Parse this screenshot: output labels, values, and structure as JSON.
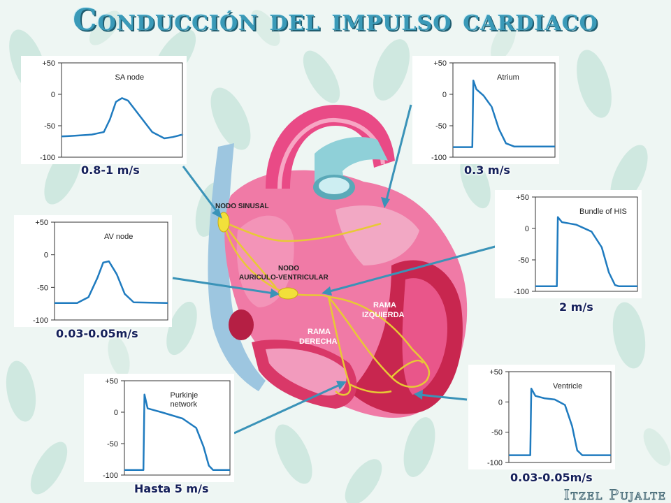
{
  "title": "Conducción del impulso cardiaco",
  "author": "Itzel Pujalte",
  "heart_labels": {
    "nodo_sinusal": "NODO SINUSAL",
    "nodo_av_1": "NODO",
    "nodo_av_2": "AURICULO-VENTRICULAR",
    "rama_izq_1": "RAMA",
    "rama_izq_2": "IZQUIERDA",
    "rama_der_1": "RAMA",
    "rama_der_2": "DERECHA"
  },
  "y_ticks": [
    "+50",
    "0",
    "-50",
    "-100"
  ],
  "panels": [
    {
      "id": "sa",
      "name": "SA  node",
      "name2": "",
      "speed": "0.8-1 m/s",
      "waveform": [
        [
          0,
          -67
        ],
        [
          0.1,
          -66
        ],
        [
          0.25,
          -64
        ],
        [
          0.35,
          -60
        ],
        [
          0.4,
          -40
        ],
        [
          0.45,
          -12
        ],
        [
          0.5,
          -6
        ],
        [
          0.55,
          -10
        ],
        [
          0.65,
          -35
        ],
        [
          0.75,
          -60
        ],
        [
          0.85,
          -70
        ],
        [
          0.92,
          -68
        ],
        [
          1,
          -64
        ]
      ]
    },
    {
      "id": "atrium",
      "name": "Atrium",
      "name2": "",
      "speed": "0.3 m/s",
      "waveform": [
        [
          0,
          -84
        ],
        [
          0.18,
          -84
        ],
        [
          0.19,
          -84
        ],
        [
          0.2,
          22
        ],
        [
          0.23,
          8
        ],
        [
          0.3,
          -2
        ],
        [
          0.38,
          -20
        ],
        [
          0.45,
          -55
        ],
        [
          0.52,
          -78
        ],
        [
          0.6,
          -83
        ],
        [
          1,
          -83
        ]
      ]
    },
    {
      "id": "av",
      "name": "AV node",
      "name2": "",
      "speed": "0.03-0.05m/s",
      "waveform": [
        [
          0,
          -74
        ],
        [
          0.2,
          -74
        ],
        [
          0.3,
          -65
        ],
        [
          0.38,
          -35
        ],
        [
          0.43,
          -12
        ],
        [
          0.48,
          -10
        ],
        [
          0.55,
          -30
        ],
        [
          0.62,
          -60
        ],
        [
          0.7,
          -73
        ],
        [
          1,
          -74
        ]
      ]
    },
    {
      "id": "his",
      "name": "Bundle of HIS",
      "name2": "",
      "speed": "2 m/s",
      "waveform": [
        [
          0,
          -92
        ],
        [
          0.2,
          -92
        ],
        [
          0.21,
          -92
        ],
        [
          0.22,
          18
        ],
        [
          0.26,
          10
        ],
        [
          0.4,
          6
        ],
        [
          0.55,
          -5
        ],
        [
          0.65,
          -30
        ],
        [
          0.72,
          -70
        ],
        [
          0.78,
          -90
        ],
        [
          0.82,
          -92
        ],
        [
          1,
          -92
        ]
      ]
    },
    {
      "id": "purkinje",
      "name": "Purkinje",
      "name2": "network",
      "speed": "Hasta 5 m/s",
      "waveform": [
        [
          0,
          -92
        ],
        [
          0.17,
          -92
        ],
        [
          0.18,
          -92
        ],
        [
          0.19,
          28
        ],
        [
          0.22,
          6
        ],
        [
          0.35,
          0
        ],
        [
          0.55,
          -10
        ],
        [
          0.68,
          -25
        ],
        [
          0.75,
          -55
        ],
        [
          0.8,
          -85
        ],
        [
          0.84,
          -92
        ],
        [
          1,
          -92
        ]
      ]
    },
    {
      "id": "ventricle",
      "name": "Ventricle",
      "name2": "",
      "speed": "0.03-0.05m/s",
      "waveform": [
        [
          0,
          -88
        ],
        [
          0.2,
          -88
        ],
        [
          0.21,
          -88
        ],
        [
          0.22,
          22
        ],
        [
          0.26,
          10
        ],
        [
          0.35,
          6
        ],
        [
          0.45,
          4
        ],
        [
          0.55,
          -5
        ],
        [
          0.62,
          -40
        ],
        [
          0.67,
          -80
        ],
        [
          0.72,
          -88
        ],
        [
          1,
          -88
        ]
      ]
    }
  ],
  "colors": {
    "title": "#3a9ab8",
    "trace": "#1f7bbf",
    "arrow": "#3a93b8",
    "speed_text": "#14205a",
    "heart_pink": "#e94a86",
    "heart_red": "#c8264f",
    "conduction": "#e8c935"
  }
}
